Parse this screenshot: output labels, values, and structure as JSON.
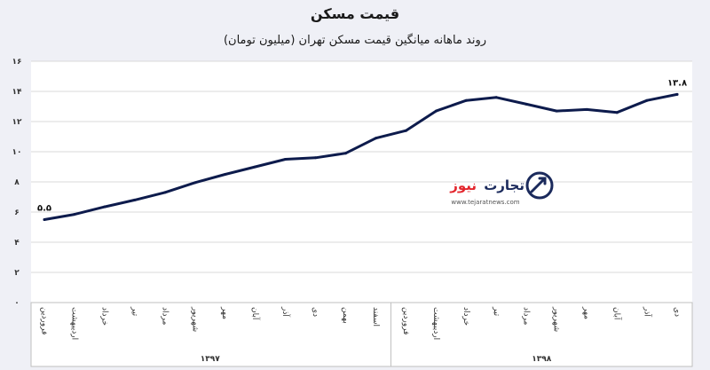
{
  "chart_data": {
    "type": "line",
    "title": "قیمت مسکن",
    "subtitle": "روند ماهانه میانگین قیمت مسکن تهران (میلیون تومان)",
    "ylim": [
      0,
      16
    ],
    "yticks": [
      "۰",
      "۲",
      "۴",
      "۶",
      "۸",
      "۱۰",
      "۱۲",
      "۱۴",
      "۱۶"
    ],
    "ytick_values": [
      0,
      2,
      4,
      6,
      8,
      10,
      12,
      14,
      16
    ],
    "grid": true,
    "categories": [
      "فروردین",
      "اردیبهشت",
      "خرداد",
      "تیر",
      "مرداد",
      "شهریور",
      "مهر",
      "آبان",
      "آذر",
      "دی",
      "بهمن",
      "اسفند",
      "فروردین",
      "اردیبهشت",
      "خرداد",
      "تیر",
      "مرداد",
      "شهریور",
      "مهر",
      "آبان",
      "آذر",
      "دی"
    ],
    "series": [
      {
        "values": [
          5.5,
          5.85,
          6.35,
          6.8,
          7.3,
          7.95,
          8.5,
          9.0,
          9.5,
          9.6,
          9.9,
          10.9,
          11.4,
          12.7,
          13.4,
          13.6,
          13.15,
          12.7,
          12.8,
          12.6,
          13.4,
          13.8
        ],
        "color": "#0d1b4c"
      }
    ],
    "data_labels": [
      {
        "index": 0,
        "text": "۵.۵"
      },
      {
        "index": 21,
        "text": "۱۳.۸"
      }
    ],
    "year_groups": [
      {
        "label": "۱۳۹۷",
        "start": 0,
        "end": 11
      },
      {
        "label": "۱۳۹۸",
        "start": 12,
        "end": 21
      }
    ]
  },
  "watermark": {
    "brand_main": "تجارت",
    "brand_accent": "نیوز",
    "url": "www.tejaratnews.com",
    "accent_color": "#e3262d",
    "brand_color": "#1b2a5c"
  },
  "colors": {
    "background": "#eff0f6",
    "plot_background": "#ffffff",
    "line": "#0d1b4c",
    "grid": "#d9d9d9"
  }
}
